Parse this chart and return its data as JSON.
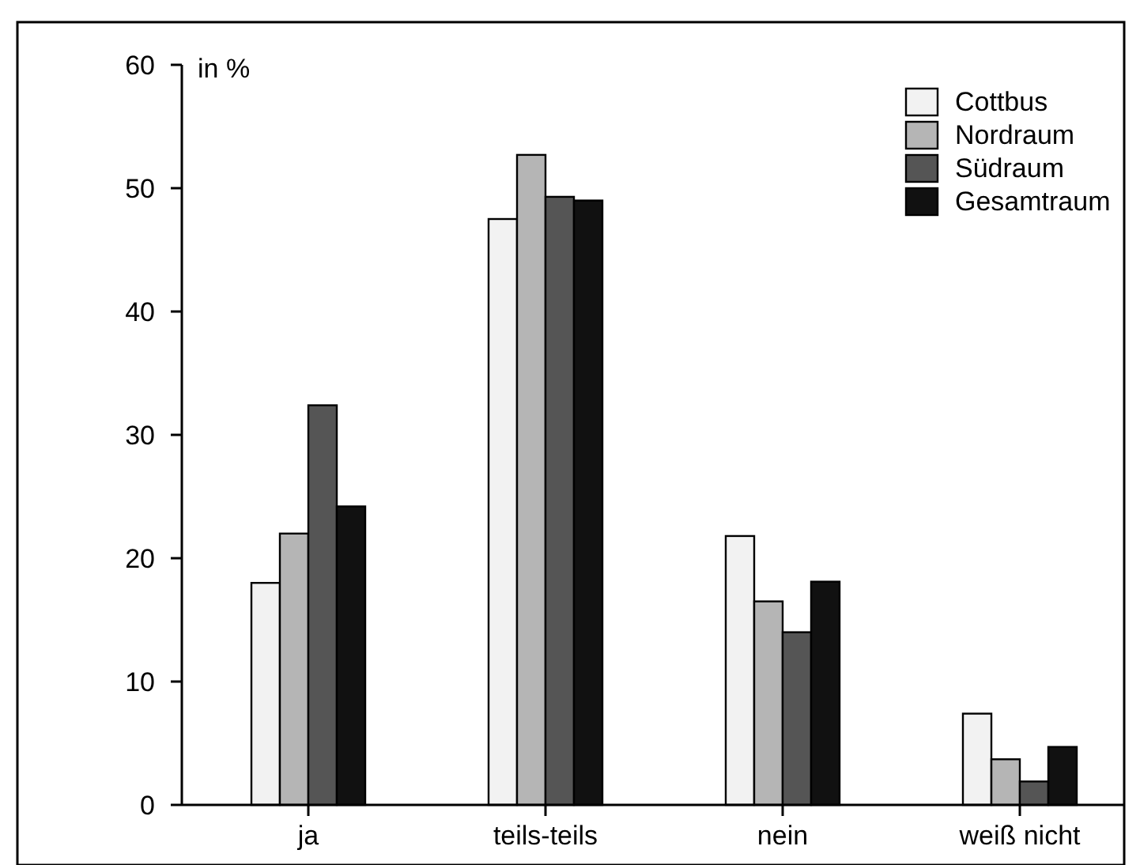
{
  "chart_data": {
    "type": "bar",
    "ylabel": "in %",
    "categories": [
      "ja",
      "teils-teils",
      "nein",
      "weiß nicht"
    ],
    "series": [
      {
        "name": "Cottbus",
        "color": "#f2f2f2",
        "values": [
          18,
          47.5,
          21.8,
          7.4
        ]
      },
      {
        "name": "Nordraum",
        "color": "#b5b5b5",
        "values": [
          22,
          52.7,
          16.5,
          3.7
        ]
      },
      {
        "name": "Südraum",
        "color": "#555555",
        "values": [
          32.4,
          49.3,
          14,
          1.9
        ]
      },
      {
        "name": "Gesamtraum",
        "color": "#111111",
        "values": [
          24.2,
          49,
          18.1,
          4.7
        ]
      }
    ],
    "ylim": [
      0,
      60
    ],
    "yticks": [
      0,
      10,
      20,
      30,
      40,
      50,
      60
    ],
    "grid": false,
    "legend": "top right"
  }
}
